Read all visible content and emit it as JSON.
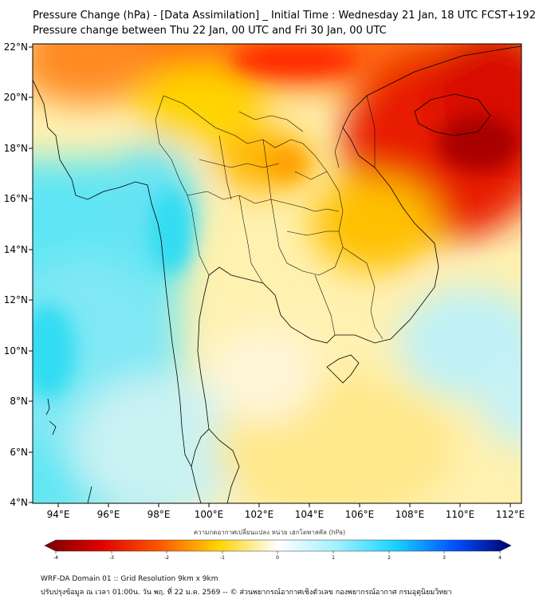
{
  "title": "Pressure Change (hPa) - [Data Assimilation] _ Initial Time : Wednesday 21 Jan, 18 UTC FCST+192",
  "subtitle": "Pressure change between Thu 22 Jan, 00 UTC and Fri 30 Jan, 00 UTC",
  "lat_labels": [
    "22°N",
    "20°N",
    "18°N",
    "16°N",
    "14°N",
    "12°N",
    "10°N",
    "8°N",
    "6°N",
    "4°N"
  ],
  "lon_labels": [
    "94°E",
    "96°E",
    "98°E",
    "100°E",
    "102°E",
    "104°E",
    "106°E",
    "108°E",
    "110°E",
    "112°E"
  ],
  "colorbar": {
    "title": "ความกดอากาศเปลี่ยนแปลง หน่วย เฮกโตพาสคัล (hPa)",
    "ticks": [
      "-4",
      "-3",
      "-2",
      "-1",
      "0",
      "1",
      "2",
      "3",
      "4"
    ],
    "min": -4,
    "max": 4
  },
  "footer": {
    "line1": "WRF-DA Domain 01 :: Grid Resolution 9km x 9km",
    "line2": "ปรับปรุงข้อมูล ณ เวลา 01:00น. วัน พฤ. ที่ 22 ม.ค. 2569 -- © ส่วนพยากรณ์อากาศเชิงตัวเลข กองพยากรณ์อากาศ กรมอุตุนิยมวิทยา"
  },
  "colors": {
    "strong_fall": "#8b0000",
    "fall": "#ff2a00",
    "weak_fall": "#ffd700",
    "neutral": "#ffffff",
    "weak_rise": "#c0f3fb",
    "rise": "#33e0ff",
    "strong_rise": "#00008b"
  }
}
